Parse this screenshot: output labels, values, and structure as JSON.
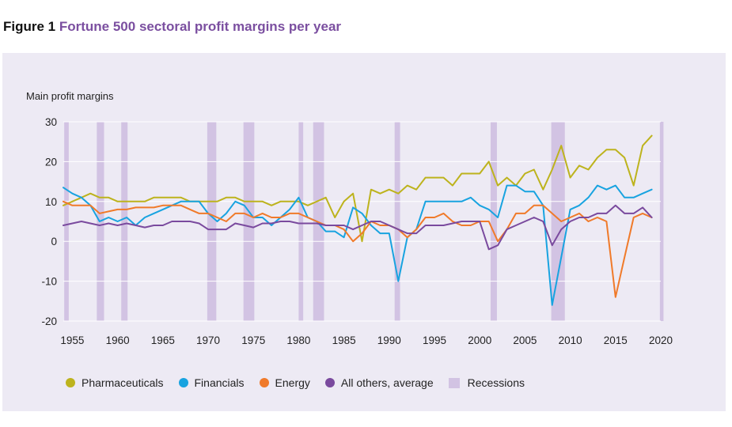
{
  "figure": {
    "number": "Figure 1",
    "title": "Fortune 500 sectoral profit margins per year"
  },
  "chart_data": {
    "type": "line",
    "ylabel": "Main profit margins",
    "xlim": [
      1954,
      2020
    ],
    "ylim": [
      -20,
      30
    ],
    "x_ticks": [
      1955,
      1960,
      1965,
      1970,
      1975,
      1980,
      1985,
      1990,
      1995,
      2000,
      2005,
      2010,
      2015,
      2020
    ],
    "y_ticks": [
      -20,
      -10,
      0,
      10,
      20,
      30
    ],
    "grid": "horizontal",
    "legend_position": "bottom",
    "recessions": [
      [
        1954.1,
        1954.6
      ],
      [
        1957.7,
        1958.5
      ],
      [
        1960.4,
        1961.1
      ],
      [
        1969.9,
        1970.9
      ],
      [
        1973.9,
        1975.1
      ],
      [
        1980.0,
        1980.5
      ],
      [
        1981.6,
        1982.8
      ],
      [
        1990.6,
        1991.2
      ],
      [
        2001.2,
        2001.9
      ],
      [
        2007.9,
        2009.4
      ],
      [
        2019.9,
        2020.3
      ]
    ],
    "recession_label": "Recessions",
    "x": [
      1954,
      1955,
      1956,
      1957,
      1958,
      1959,
      1960,
      1961,
      1962,
      1963,
      1964,
      1965,
      1966,
      1967,
      1968,
      1969,
      1970,
      1971,
      1972,
      1973,
      1974,
      1975,
      1976,
      1977,
      1978,
      1979,
      1980,
      1981,
      1982,
      1983,
      1984,
      1985,
      1986,
      1987,
      1988,
      1989,
      1990,
      1991,
      1992,
      1993,
      1994,
      1995,
      1996,
      1997,
      1998,
      1999,
      2000,
      2001,
      2002,
      2003,
      2004,
      2005,
      2006,
      2007,
      2008,
      2009,
      2010,
      2011,
      2012,
      2013,
      2014,
      2015,
      2016,
      2017,
      2018,
      2019
    ],
    "series": [
      {
        "name": "Pharmaceuticals",
        "color": "#bdb31d",
        "values": [
          9,
          10,
          11,
          12,
          11,
          11,
          10,
          10,
          10,
          10,
          11,
          11,
          11,
          11,
          10,
          10,
          10,
          10,
          11,
          11,
          10,
          10,
          10,
          9,
          10,
          10,
          10,
          9,
          10,
          11,
          6,
          10,
          12,
          0,
          13,
          12,
          13,
          12,
          14,
          13,
          16,
          16,
          16,
          14,
          17,
          17,
          17,
          20,
          14,
          16,
          14,
          17,
          18,
          13,
          18,
          24,
          16,
          19,
          18,
          21,
          23,
          23,
          21,
          14,
          24,
          26.5
        ]
      },
      {
        "name": "Financials",
        "color": "#18a3e0",
        "values": [
          13.5,
          12,
          11,
          9,
          5,
          6,
          5,
          6,
          4,
          6,
          7,
          8,
          9,
          10,
          10,
          10,
          7,
          5,
          7,
          10,
          9,
          6,
          6,
          4,
          6,
          8,
          11,
          6,
          5,
          2.5,
          2.5,
          1,
          8.5,
          7,
          4,
          2,
          2,
          -10,
          1,
          3,
          10,
          10,
          10,
          10,
          10,
          11,
          9,
          8,
          6,
          14,
          14,
          12.5,
          12.5,
          9,
          -16,
          -4,
          8,
          9,
          11,
          14,
          13,
          14,
          11,
          11,
          12,
          13
        ]
      },
      {
        "name": "Energy",
        "color": "#f07a2a",
        "values": [
          10,
          9,
          9,
          9,
          7,
          7.5,
          8,
          8,
          8.5,
          8.5,
          8.5,
          9,
          9,
          9,
          8,
          7,
          7,
          6,
          5,
          7,
          7,
          6,
          7,
          6,
          6,
          7,
          7,
          6,
          5,
          4,
          4,
          3,
          0,
          2,
          5,
          4,
          4,
          3,
          1,
          3,
          6,
          6,
          7,
          5,
          4,
          4,
          5,
          5,
          0,
          3,
          7,
          7,
          9,
          9,
          7,
          5,
          6,
          7,
          5,
          6,
          5,
          -14,
          -4,
          6,
          7,
          6
        ]
      },
      {
        "name": "All others, average",
        "color": "#7a4a9e",
        "values": [
          4,
          4.5,
          5,
          4.5,
          4,
          4.5,
          4,
          4.5,
          4,
          3.5,
          4,
          4,
          5,
          5,
          5,
          4.5,
          3,
          3,
          3,
          4.5,
          4,
          3.5,
          4.5,
          4.5,
          5,
          5,
          4.5,
          4.5,
          4.5,
          4,
          4,
          4,
          3,
          4,
          5,
          5,
          4,
          3,
          2,
          2,
          4,
          4,
          4,
          4.5,
          5,
          5,
          5,
          -2,
          -1,
          3,
          4,
          5,
          6,
          5,
          -1,
          3,
          5,
          6,
          6,
          7,
          7,
          9,
          7,
          7,
          8.5,
          6
        ]
      }
    ]
  }
}
